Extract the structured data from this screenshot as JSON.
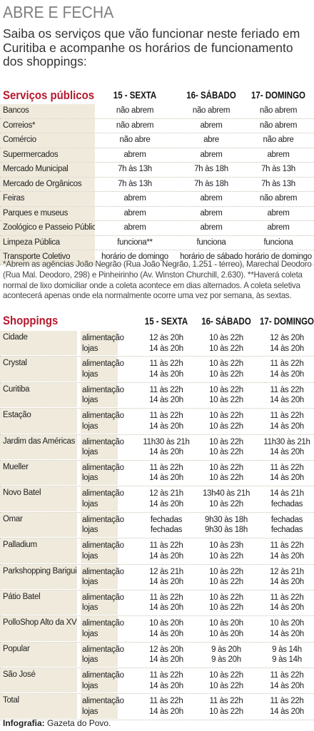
{
  "title": "ABRE E FECHA",
  "intro": "Saiba os serviços que vão funcionar neste feriado em Curitiba e acompanhe os horários de funcionamento dos shoppings:",
  "services": {
    "section_title": "Serviços públicos",
    "columns": [
      "15 - SEXTA",
      "16- SÁBADO",
      "17- DOMINGO"
    ],
    "rows": [
      {
        "name": "Bancos",
        "values": [
          "não abrem",
          "não abrem",
          "não abrem"
        ]
      },
      {
        "name": "Correios*",
        "values": [
          "não abrem",
          "abrem",
          "não abrem"
        ]
      },
      {
        "name": "Comércio",
        "values": [
          "não abre",
          "abre",
          "não abre"
        ]
      },
      {
        "name": "Supermercados",
        "values": [
          "abrem",
          "abrem",
          "abrem"
        ]
      },
      {
        "name": "Mercado Municipal",
        "values": [
          "7h às 13h",
          "7h às 18h",
          "7h às 13h"
        ]
      },
      {
        "name": "Mercado de Orgânicos",
        "values": [
          "7h às 13h",
          "7h às 18h",
          "7h às 13h"
        ]
      },
      {
        "name": "Feiras",
        "values": [
          "abrem",
          "abrem",
          "não abrem"
        ]
      },
      {
        "name": "Parques e museus",
        "values": [
          "abrem",
          "abrem",
          "abrem"
        ]
      },
      {
        "name": "Zoológico e Passeio Público",
        "values": [
          "abrem",
          "abrem",
          "abrem"
        ]
      },
      {
        "name": "Limpeza Pública",
        "values": [
          "funciona**",
          "funciona",
          "funciona"
        ]
      },
      {
        "name": "Transporte Coletivo",
        "values": [
          "horário de domingo",
          "horário de sábado",
          "horário de domingo"
        ]
      }
    ],
    "note": "*Abrem as agências João Negrão (Rua João Negrão, 1.251 - térreo), Marechal Deodoro (Rua Mal. Deodoro, 298) e Pinheirinho (Av. Winston Churchill, 2.630). **Haverá coleta normal de lixo domiciliar onde a coleta acontece em dias alternados. A coleta seletiva acontecerá apenas onde ela normalmente ocorre uma vez por semana, às sextas."
  },
  "shoppings": {
    "section_title": "Shoppings",
    "columns": [
      "15 - SEXTA",
      "16- SÁBADO",
      "17- DOMINGO"
    ],
    "kinds": [
      "alimentação",
      "lojas"
    ],
    "rows": [
      {
        "name": "Cidade",
        "sexta": [
          "12 às 20h",
          "14 às 20h"
        ],
        "sabado": [
          "10 às 22h",
          "10 às 22h"
        ],
        "domingo": [
          "12 às 20h",
          "14 às 20h"
        ]
      },
      {
        "name": "Crystal",
        "sexta": [
          "11 às 22h",
          "14 às 20h"
        ],
        "sabado": [
          "10 às 22h",
          "10 às 22h"
        ],
        "domingo": [
          "11 às 22h",
          "14 às 20h"
        ]
      },
      {
        "name": "Curitiba",
        "sexta": [
          "11 às 22h",
          "14 às 20h"
        ],
        "sabado": [
          "10 às 22h",
          "10 às 22h"
        ],
        "domingo": [
          "11 às 22h",
          "14 às 20h"
        ]
      },
      {
        "name": "Estação",
        "sexta": [
          "11 às 22h",
          "14 às 20h"
        ],
        "sabado": [
          "10 às 22h",
          "10 às 22h"
        ],
        "domingo": [
          "11 às 22h",
          "14 às 20h"
        ]
      },
      {
        "name": "Jardim das Américas",
        "sexta": [
          "11h30 às 21h",
          "14 às 20h"
        ],
        "sabado": [
          "10 às 22h",
          "10 às 22h"
        ],
        "domingo": [
          "11h30 às 21h",
          "14 às 20h"
        ]
      },
      {
        "name": "Mueller",
        "sexta": [
          "11 às 22h",
          "14 às 20h"
        ],
        "sabado": [
          "10 às 22h",
          "10 às 22h"
        ],
        "domingo": [
          "11 às 22h",
          "14 às 20h"
        ]
      },
      {
        "name": "Novo Batel",
        "sexta": [
          "12 às 21h",
          "14 às 20h"
        ],
        "sabado": [
          "13h40 às 21h",
          "10 às 22h"
        ],
        "domingo": [
          "14 às 21h",
          "fechadas"
        ]
      },
      {
        "name": "Omar",
        "sexta": [
          "fechadas",
          "fechadas"
        ],
        "sabado": [
          "9h30 às 18h",
          "9h30 às 18h"
        ],
        "domingo": [
          "fechadas",
          "fechadas"
        ]
      },
      {
        "name": "Palladium",
        "sexta": [
          "11 às 22h",
          "14 às 20h"
        ],
        "sabado": [
          "10 às 23h",
          "10 às 22h"
        ],
        "domingo": [
          "11 às 22h",
          "14 às 20h"
        ]
      },
      {
        "name": "Parkshopping Barigui",
        "sexta": [
          "12 às 21h",
          "14 às 20h"
        ],
        "sabado": [
          "10 às 22h",
          "10 às 22h"
        ],
        "domingo": [
          "12 às 21h",
          "14 às 20h"
        ]
      },
      {
        "name": "Pátio Batel",
        "sexta": [
          "11 às 22h",
          "14 às 20h"
        ],
        "sabado": [
          "10 às 22h",
          "10 às 22h"
        ],
        "domingo": [
          "11 às 22h",
          "14 às 20h"
        ]
      },
      {
        "name": "PolloShop Alto da XV",
        "sexta": [
          "10 às 20h",
          "14 às 20h"
        ],
        "sabado": [
          "10 às 20h",
          "10 às 20h"
        ],
        "domingo": [
          "10 às 20h",
          "14 às 20h"
        ]
      },
      {
        "name": "Popular",
        "sexta": [
          "12 às 20h",
          "14 às 20h"
        ],
        "sabado": [
          "9 às 20h",
          "9 às 20h"
        ],
        "domingo": [
          "9 às 14h",
          "9 às 14h"
        ]
      },
      {
        "name": "São José",
        "sexta": [
          "11 às 22h",
          "14 às 20h"
        ],
        "sabado": [
          "10 às 22h",
          "10 às 22h"
        ],
        "domingo": [
          "11 às 22h",
          "14 às 20h"
        ]
      },
      {
        "name": "Total",
        "sexta": [
          "11 às 22h",
          "14 às 20h"
        ],
        "sabado": [
          "11 às 22h",
          "10 às 22h"
        ],
        "domingo": [
          "11 às 22h",
          "14 às 20h"
        ]
      }
    ]
  },
  "credit": {
    "label": "Infografia:",
    "source": "Gazeta do Povo."
  },
  "colors": {
    "accent": "#b5192e",
    "shade": "#efeadc",
    "title_gray": "#7f7f7f"
  }
}
